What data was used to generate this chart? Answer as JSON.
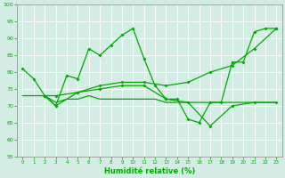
{
  "xlabel": "Humidité relative (%)",
  "xlim": [
    -0.5,
    23.5
  ],
  "ylim": [
    55,
    100
  ],
  "yticks": [
    55,
    60,
    65,
    70,
    75,
    80,
    85,
    90,
    95,
    100
  ],
  "xticks": [
    0,
    1,
    2,
    3,
    4,
    5,
    6,
    7,
    8,
    9,
    10,
    11,
    12,
    13,
    14,
    15,
    16,
    17,
    18,
    19,
    20,
    21,
    22,
    23
  ],
  "bg_color": "#d4ede4",
  "line_color": "#00aa00",
  "line1_x": [
    0,
    1,
    2,
    3,
    4,
    5,
    6,
    7,
    8,
    9,
    10,
    11,
    12,
    13,
    14,
    15,
    16,
    17,
    18,
    19,
    20,
    21,
    22,
    23
  ],
  "line1_y": [
    81,
    78,
    73,
    70,
    79,
    78,
    87,
    85,
    88,
    91,
    93,
    84,
    76,
    72,
    72,
    66,
    65,
    71,
    71,
    83,
    83,
    92,
    93,
    93
  ],
  "line2_x": [
    2,
    3,
    5,
    7,
    9,
    11,
    13,
    15,
    17,
    19,
    21,
    23
  ],
  "line2_y": [
    73,
    73,
    74,
    76,
    77,
    77,
    76,
    77,
    80,
    82,
    87,
    93
  ],
  "line3_x": [
    2,
    3,
    5,
    7,
    9,
    11,
    13,
    15,
    17,
    19,
    21,
    23
  ],
  "line3_y": [
    73,
    70,
    74,
    75,
    76,
    76,
    72,
    71,
    64,
    70,
    71,
    71
  ],
  "line4_x": [
    0,
    1,
    2,
    3,
    4,
    5,
    6,
    7,
    8,
    9,
    10,
    11,
    12,
    13,
    14,
    15,
    16,
    17,
    18,
    19,
    20,
    21,
    22,
    23
  ],
  "line4_y": [
    73,
    73,
    73,
    71,
    72,
    72,
    73,
    72,
    72,
    72,
    72,
    72,
    72,
    71,
    71,
    71,
    71,
    71,
    71,
    71,
    71,
    71,
    71,
    71
  ]
}
